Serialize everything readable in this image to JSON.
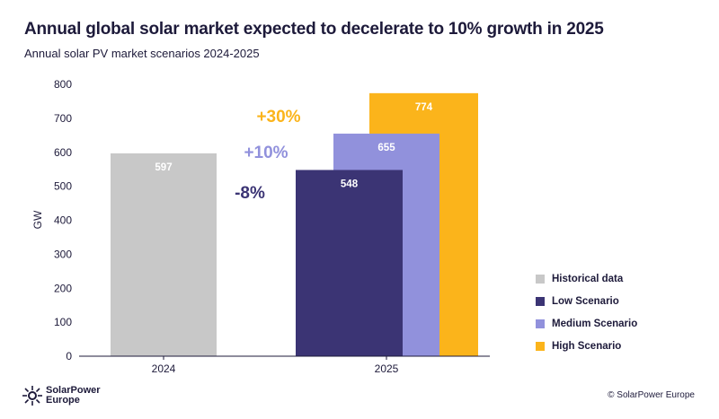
{
  "title": "Annual global solar market expected to decelerate to 10% growth in 2025",
  "subtitle": "Annual solar PV market scenarios 2024-2025",
  "footer": {
    "logo_line1": "SolarPower",
    "logo_line2": "Europe",
    "copyright": "© SolarPower Europe"
  },
  "chart_data": {
    "type": "bar",
    "title": "Annual global solar market expected to decelerate to 10% growth in 2025",
    "ylabel": "GW",
    "xlabel": "",
    "ylim": [
      0,
      800
    ],
    "yticks": [
      "0",
      "100",
      "200",
      "300",
      "400",
      "500",
      "600",
      "700",
      "800"
    ],
    "categories": [
      "2024",
      "2025"
    ],
    "series": [
      {
        "name": "Historical data",
        "color": "#c8c8c8",
        "category": "2024",
        "value": 597
      },
      {
        "name": "High Scenario",
        "color": "#fbb41b",
        "category": "2025",
        "value": 774
      },
      {
        "name": "Medium Scenario",
        "color": "#9191dc",
        "category": "2025",
        "value": 655
      },
      {
        "name": "Low Scenario",
        "color": "#3b3474",
        "category": "2025",
        "value": 548
      }
    ],
    "legend": [
      "Historical data",
      "Low Scenario",
      "Medium Scenario",
      "High Scenario"
    ],
    "legend_colors": [
      "#c8c8c8",
      "#3b3474",
      "#9191dc",
      "#fbb41b"
    ],
    "legend_placement": "right",
    "annotations": [
      {
        "text": "+30%",
        "color": "#fbb41b"
      },
      {
        "text": "+10%",
        "color": "#9191dc"
      },
      {
        "text": "-8%",
        "color": "#3b3474"
      }
    ]
  }
}
